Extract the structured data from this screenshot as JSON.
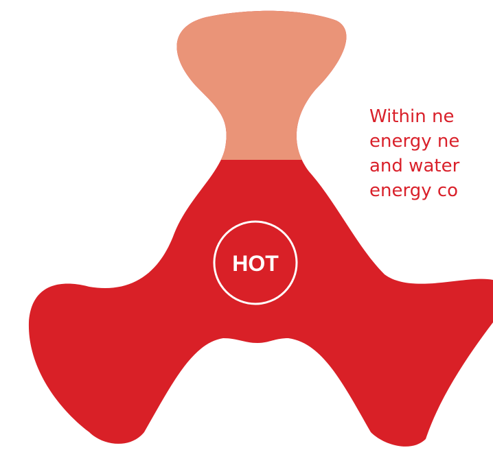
{
  "badge": {
    "label": "HOT"
  },
  "caption": {
    "lines": [
      "Within ne",
      "energy ne",
      "and water",
      "energy co"
    ]
  }
}
